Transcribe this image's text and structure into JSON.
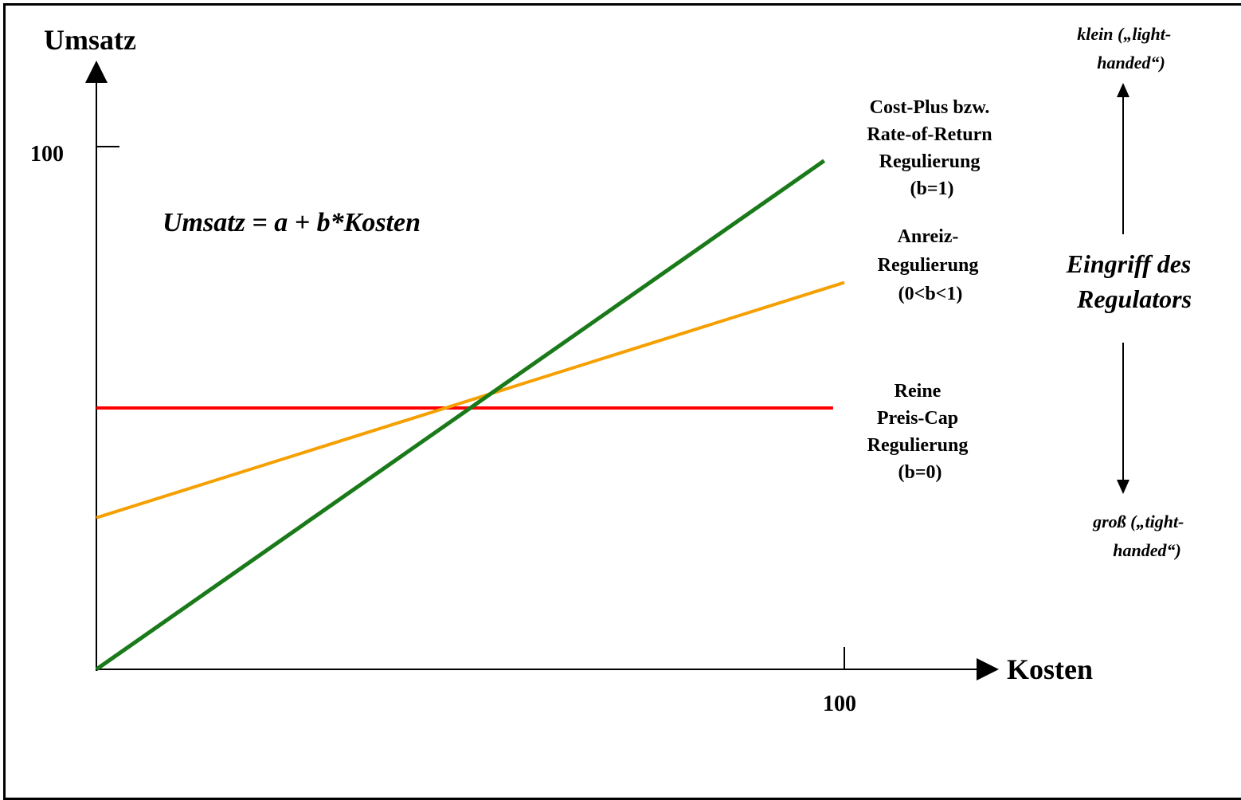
{
  "axes": {
    "y_label": "Umsatz",
    "x_label": "Kosten",
    "y_tick": "100",
    "x_tick": "100"
  },
  "formula": "Umsatz = a + b*Kosten",
  "lines": {
    "cost_plus": {
      "label_lines": [
        "Cost-Plus bzw.",
        "Rate-of-Return",
        "Regulierung",
        "(b=1)"
      ],
      "color": "#1a7a1a",
      "b": 1,
      "y_at_0": 0,
      "y_at_100": 100
    },
    "anreiz": {
      "label_lines": [
        "Anreiz-",
        "Regulierung",
        "(0<b<1)"
      ],
      "color": "#f5a000",
      "y_at_0": 29,
      "y_at_100": 74
    },
    "preis_cap": {
      "label_lines": [
        "Reine",
        "Preis-Cap",
        "Regulierung",
        "(b=0)"
      ],
      "color": "#ff0000",
      "b": 0,
      "y_at_0": 50,
      "y_at_100": 50
    }
  },
  "side_scale": {
    "top_lines": [
      "klein („light-",
      "handed“)"
    ],
    "middle_lines": [
      "Eingriff des",
      "Regulators"
    ],
    "bottom_lines": [
      "groß („tight-",
      "handed“)"
    ]
  }
}
